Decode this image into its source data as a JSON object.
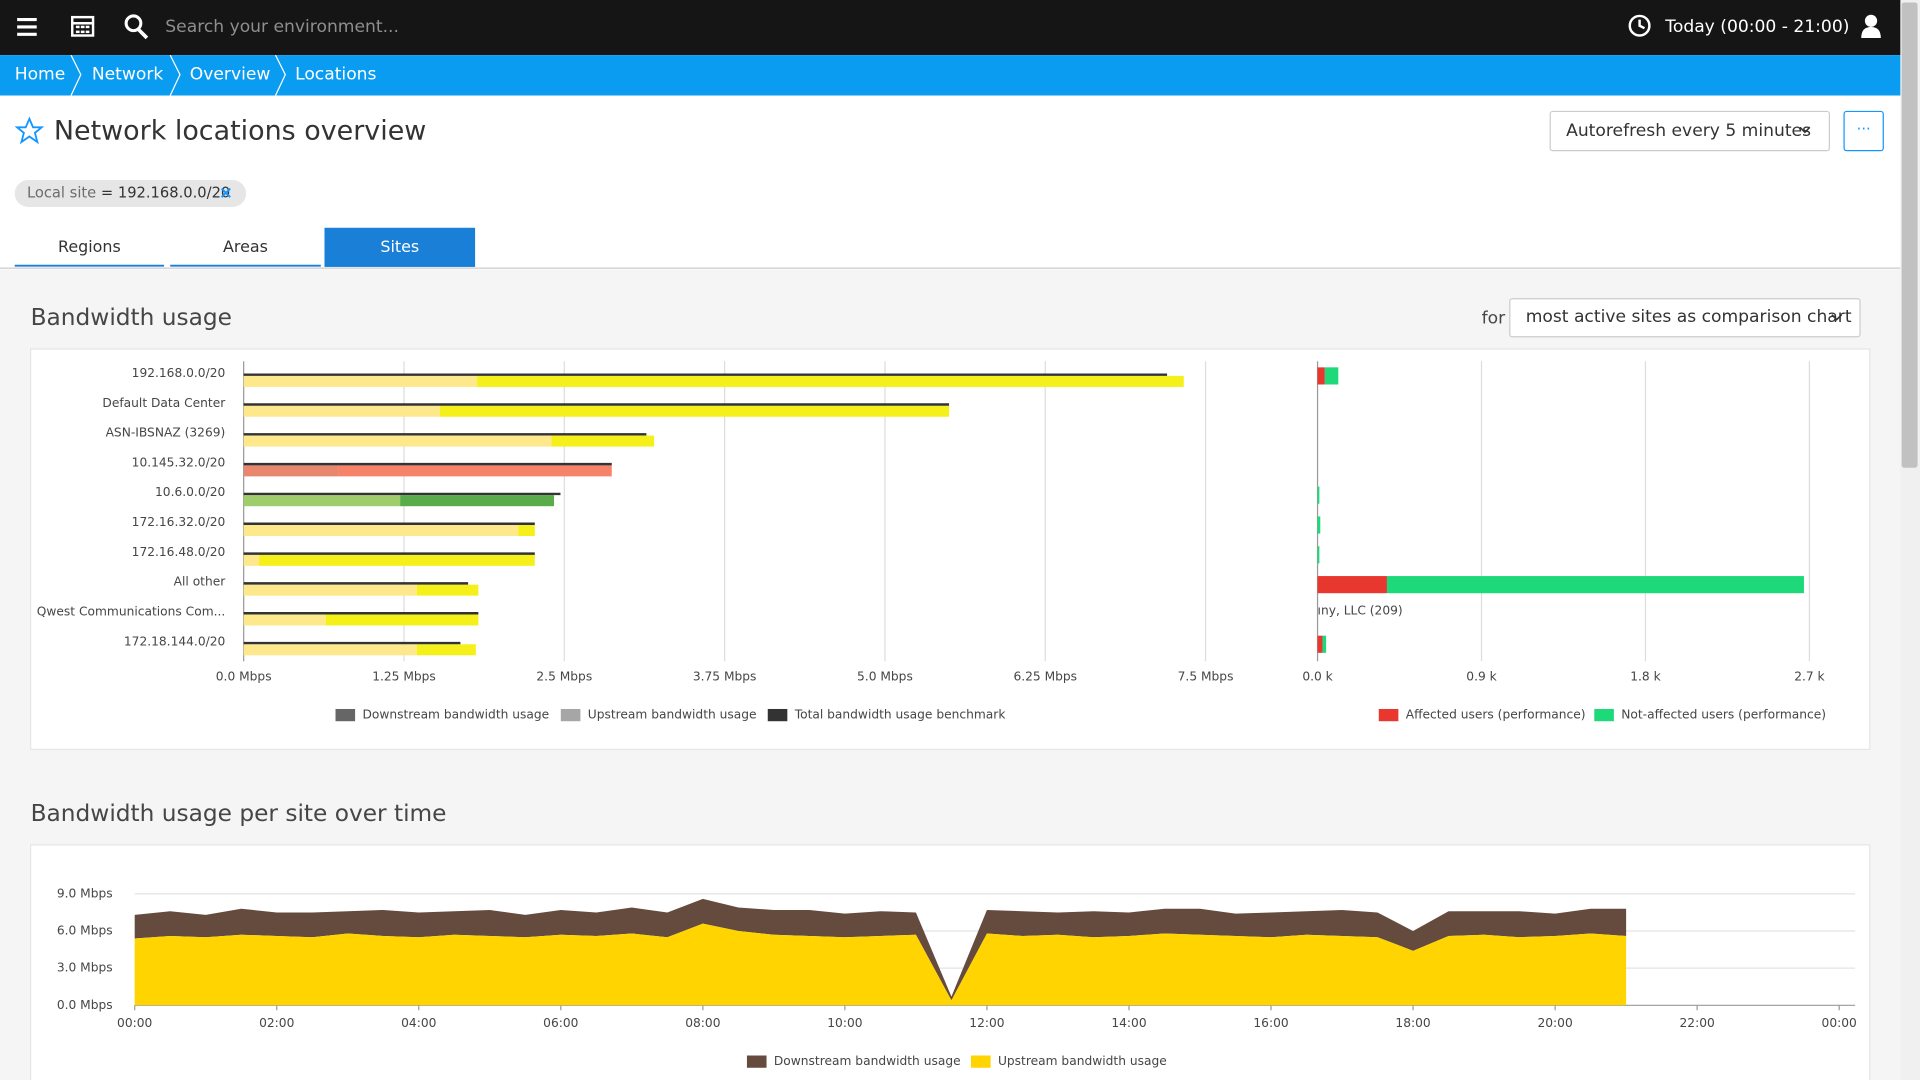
{
  "header": {
    "search_placeholder": "Search your environment...",
    "timeframe": "Today (00:00 - 21:00)"
  },
  "breadcrumbs": [
    "Home",
    "Network",
    "Overview",
    "Locations"
  ],
  "page": {
    "title": "Network locations overview",
    "autorefresh": "Autorefresh every 5 minutes",
    "more": "···"
  },
  "filter": {
    "key": "Local site",
    "operator": "=",
    "value": "192.168.0.0/20"
  },
  "tabs": [
    "Regions",
    "Areas",
    "Sites"
  ],
  "active_tab": 2,
  "bandwidth": {
    "title": "Bandwidth usage",
    "for_label": "for",
    "selector": "most active sites as comparison chart",
    "chart": {
      "type": "bar",
      "orientation": "horizontal",
      "stacked": true,
      "categories": [
        "192.168.0.0/20",
        "Default Data Center",
        "ASN-IBSNAZ (3269)",
        "10.145.32.0/20",
        "10.6.0.0/20",
        "172.16.32.0/20",
        "172.16.48.0/20",
        "All other",
        "Qwest Communications Com...",
        "172.18.144.0/20"
      ],
      "series": [
        {
          "name": "Downstream bandwidth usage",
          "color": "#666666",
          "values": [
            5.51,
            3.97,
            0.8,
            2.13,
            1.2,
            0.13,
            2.15,
            0.48,
            1.19,
            0.46
          ]
        },
        {
          "name": "Upstream bandwidth usage",
          "color": "#a6a6a6",
          "values": [
            1.82,
            1.53,
            2.4,
            0.74,
            1.22,
            2.14,
            0.12,
            1.35,
            0.64,
            1.35
          ]
        }
      ],
      "benchmark": {
        "name": "Total bandwidth usage benchmark",
        "color": "#333333",
        "values": [
          7.2,
          5.5,
          3.14,
          2.87,
          2.47,
          2.27,
          2.27,
          1.75,
          1.83,
          1.69
        ]
      },
      "bar_colors": [
        {
          "upstream": "#fde98c",
          "downstream": "#f5f01a"
        },
        {
          "upstream": "#fde98c",
          "downstream": "#f5f01a"
        },
        {
          "upstream": "#fde98c",
          "downstream": "#f5f01a"
        },
        {
          "upstream": "#e8866e",
          "downstream": "#f6826a"
        },
        {
          "upstream": "#a0cd6b",
          "downstream": "#5aab4a"
        },
        {
          "upstream": "#fde98c",
          "downstream": "#f5f01a"
        },
        {
          "upstream": "#fde98c",
          "downstream": "#f5f01a"
        },
        {
          "upstream": "#fde98c",
          "downstream": "#f5f01a"
        },
        {
          "upstream": "#fde98c",
          "downstream": "#f5f01a"
        },
        {
          "upstream": "#fde98c",
          "downstream": "#f5f01a"
        }
      ],
      "xlim": [
        0,
        8.125
      ],
      "xticks": [
        {
          "value": 0,
          "label": "0.0 Mbps"
        },
        {
          "value": 1.25,
          "label": "1.25 Mbps"
        },
        {
          "value": 2.5,
          "label": "2.5 Mbps"
        },
        {
          "value": 3.75,
          "label": "3.75 Mbps"
        },
        {
          "value": 5,
          "label": "5.0 Mbps"
        },
        {
          "value": 6.25,
          "label": "6.25 Mbps"
        },
        {
          "value": 7.5,
          "label": "7.5 Mbps"
        }
      ],
      "grid": true
    },
    "users_chart": {
      "type": "bar",
      "orientation": "horizontal",
      "stacked": true,
      "series": [
        {
          "name": "Affected users (performance)",
          "color": "#e8372f",
          "values": [
            40,
            null,
            null,
            null,
            null,
            null,
            null,
            381,
            null,
            27
          ]
        },
        {
          "name": "Not-affected users (performance)",
          "color": "#1ed97a",
          "values": [
            74,
            null,
            null,
            null,
            10,
            15,
            10,
            2289,
            null,
            20
          ]
        }
      ],
      "annotation": {
        "row": 8,
        "text": "ıny, LLC (209)"
      },
      "xlim": [
        0,
        2850
      ],
      "xticks": [
        {
          "value": 0,
          "label": "0.0 k"
        },
        {
          "value": 900,
          "label": "0.9 k"
        },
        {
          "value": 1800,
          "label": "1.8 k"
        },
        {
          "value": 2700,
          "label": "2.7 k"
        }
      ],
      "grid": true
    }
  },
  "over_time": {
    "title": "Bandwidth usage per site over time",
    "chart": {
      "type": "area",
      "stacked": true,
      "x": [
        0,
        0.5,
        1,
        1.5,
        2,
        2.5,
        3,
        3.5,
        4,
        4.5,
        5,
        5.5,
        6,
        6.5,
        7,
        7.5,
        8,
        8.5,
        9,
        9.5,
        10,
        10.5,
        11,
        11.5,
        12,
        12.5,
        13,
        13.5,
        14,
        14.5,
        15,
        15.5,
        16,
        16.5,
        17,
        17.5,
        18,
        18.5,
        19,
        19.5,
        20,
        20.5,
        21
      ],
      "series": [
        {
          "name": "Downstream bandwidth usage",
          "color": "#654b3e",
          "values": [
            1.9,
            2.0,
            1.8,
            2.1,
            1.9,
            2.0,
            1.8,
            2.1,
            2.0,
            1.9,
            2.1,
            1.8,
            2.0,
            1.9,
            2.1,
            2.0,
            2.0,
            1.9,
            2.0,
            2.1,
            1.9,
            2.0,
            1.8,
            0.3,
            1.9,
            2.0,
            1.8,
            2.1,
            1.9,
            2.0,
            2.1,
            1.8,
            2.0,
            1.9,
            2.1,
            2.0,
            1.6,
            2.0,
            1.9,
            2.1,
            1.8,
            2.0,
            2.2
          ]
        },
        {
          "name": "Upstream bandwidth usage",
          "color": "#ffd400",
          "values": [
            5.4,
            5.6,
            5.5,
            5.7,
            5.6,
            5.5,
            5.8,
            5.6,
            5.5,
            5.7,
            5.6,
            5.5,
            5.7,
            5.6,
            5.8,
            5.5,
            6.6,
            6.0,
            5.7,
            5.6,
            5.5,
            5.6,
            5.7,
            0.4,
            5.8,
            5.6,
            5.7,
            5.5,
            5.6,
            5.8,
            5.7,
            5.6,
            5.5,
            5.7,
            5.6,
            5.5,
            4.4,
            5.6,
            5.7,
            5.5,
            5.6,
            5.8,
            5.6
          ]
        }
      ],
      "xlim": [
        0,
        24
      ],
      "xticks": [
        {
          "value": 0,
          "label": "00:00"
        },
        {
          "value": 2,
          "label": "02:00"
        },
        {
          "value": 4,
          "label": "04:00"
        },
        {
          "value": 6,
          "label": "06:00"
        },
        {
          "value": 8,
          "label": "08:00"
        },
        {
          "value": 10,
          "label": "10:00"
        },
        {
          "value": 12,
          "label": "12:00"
        },
        {
          "value": 14,
          "label": "14:00"
        },
        {
          "value": 16,
          "label": "16:00"
        },
        {
          "value": 18,
          "label": "18:00"
        },
        {
          "value": 20,
          "label": "20:00"
        },
        {
          "value": 22,
          "label": "22:00"
        },
        {
          "value": 24,
          "label": "00:00"
        }
      ],
      "ylim": [
        0,
        9
      ],
      "yticks": [
        {
          "value": 0,
          "label": "0.0 Mbps"
        },
        {
          "value": 3,
          "label": "3.0 Mbps"
        },
        {
          "value": 6,
          "label": "6.0 Mbps"
        },
        {
          "value": 9,
          "label": "9.0 Mbps"
        }
      ],
      "grid": true
    }
  }
}
